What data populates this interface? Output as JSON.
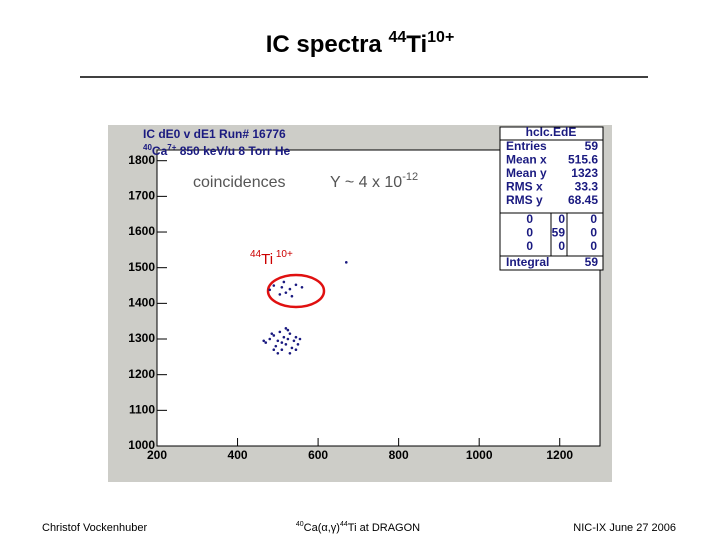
{
  "slide": {
    "title": {
      "main": "IC spectra ",
      "sup1": "44",
      "elem": "Ti",
      "sup2": "10+"
    },
    "footer": {
      "left": "Christof Vockenhuber",
      "center": {
        "sup1": "40",
        "part1": "Ca(α,γ)",
        "sup2": "44",
        "part2": "Ti at DRAGON"
      },
      "right": "NIC-IX June 27 2006"
    }
  },
  "chart_data": {
    "type": "scatter",
    "title": "IC dE0 v dE1   Run# 16776",
    "subtitle": {
      "sup1": "40",
      "elem": "Ca",
      "sup2": "7+",
      "rest": " 850 keV/u  8 Torr He"
    },
    "annotations": {
      "coincidences": "coincidences",
      "yield": {
        "main": "Y ~ 4 x 10",
        "sup": "-12"
      },
      "ion": {
        "sup1": "44",
        "elem": "Ti",
        "sup2": " 10+"
      }
    },
    "color": "#1a1a80",
    "x": [
      490,
      510,
      530,
      545,
      520,
      505,
      560,
      480,
      535,
      515,
      470,
      480,
      490,
      495,
      500,
      505,
      510,
      515,
      520,
      525,
      530,
      535,
      540,
      545,
      550,
      555,
      500,
      520,
      490,
      530,
      510,
      485,
      545,
      465,
      525,
      670
    ],
    "y": [
      1450,
      1445,
      1440,
      1452,
      1430,
      1425,
      1445,
      1438,
      1420,
      1460,
      1290,
      1300,
      1310,
      1280,
      1295,
      1320,
      1270,
      1305,
      1285,
      1300,
      1315,
      1275,
      1295,
      1305,
      1285,
      1300,
      1260,
      1330,
      1270,
      1260,
      1290,
      1315,
      1270,
      1295,
      1325,
      1515
    ],
    "xlim": [
      200,
      1300
    ],
    "ylim": [
      1000,
      1830
    ],
    "xticks": [
      200,
      400,
      600,
      800,
      1000,
      1200
    ],
    "yticks": [
      1000,
      1100,
      1200,
      1300,
      1400,
      1500,
      1600,
      1700,
      1800
    ],
    "stats": {
      "name": "hcIc.EdE",
      "rows": [
        {
          "label": "Entries",
          "value": "59"
        },
        {
          "label": "Mean x",
          "value": "515.6"
        },
        {
          "label": "Mean y",
          "value": "1323"
        },
        {
          "label": "RMS x",
          "value": "33.3"
        },
        {
          "label": "RMS y",
          "value": "68.45"
        }
      ],
      "cells": [
        [
          "0",
          "0",
          "0"
        ],
        [
          "0",
          "59",
          "0"
        ],
        [
          "0",
          "0",
          "0"
        ]
      ],
      "integral_label": "Integral",
      "integral": "59"
    }
  }
}
